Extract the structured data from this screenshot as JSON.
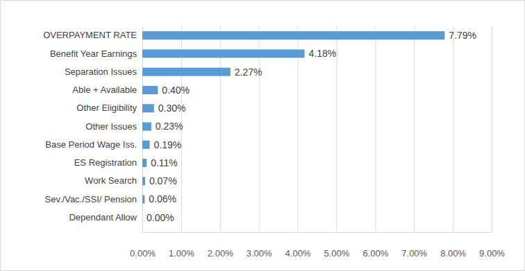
{
  "chart_data": {
    "type": "bar",
    "orientation": "horizontal",
    "categories": [
      "OVERPAYMENT RATE",
      "Benefit Year Earnings",
      "Separation Issues",
      "Able + Available",
      "Other Eligibility",
      "Other Issues",
      "Base Period Wage Iss.",
      "ES Registration",
      "Work Search",
      "Sev./Vac./SSI/ Pension",
      "Dependant Allow"
    ],
    "values": [
      7.79,
      4.18,
      2.27,
      0.4,
      0.3,
      0.23,
      0.19,
      0.11,
      0.07,
      0.06,
      0.0
    ],
    "value_labels": [
      "7.79%",
      "4.18%",
      "2.27%",
      "0.40%",
      "0.30%",
      "0.23%",
      "0.19%",
      "0.11%",
      "0.07%",
      "0.06%",
      "0.00%"
    ],
    "color": "#5b9bd5",
    "xlim": [
      0,
      9
    ],
    "xticks": [
      {
        "value": 0,
        "label": "0.00%"
      },
      {
        "value": 1,
        "label": "1.00%"
      },
      {
        "value": 2,
        "label": "2.00%"
      },
      {
        "value": 3,
        "label": "3.00%"
      },
      {
        "value": 4,
        "label": "4.00%"
      },
      {
        "value": 5,
        "label": "5.00%"
      },
      {
        "value": 6,
        "label": "6.00%"
      },
      {
        "value": 7,
        "label": "7.00%"
      },
      {
        "value": 8,
        "label": "8.00%"
      },
      {
        "value": 9,
        "label": "9.00%"
      }
    ],
    "grid": true,
    "data_labels": true
  }
}
